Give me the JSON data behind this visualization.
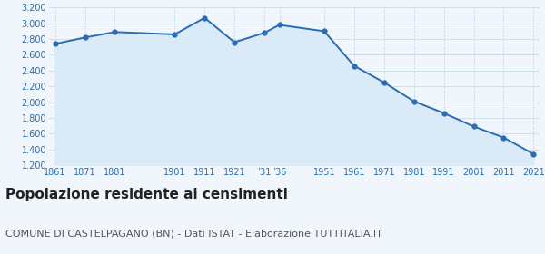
{
  "years": [
    1861,
    1871,
    1881,
    1901,
    1911,
    1921,
    1931,
    1936,
    1951,
    1961,
    1971,
    1981,
    1991,
    2001,
    2011,
    2021
  ],
  "population": [
    2740,
    2820,
    2890,
    2860,
    3070,
    2760,
    2880,
    2980,
    2900,
    2460,
    2250,
    2010,
    1860,
    1690,
    1550,
    1340
  ],
  "ylim": [
    1200,
    3200
  ],
  "yticks": [
    1200,
    1400,
    1600,
    1800,
    2000,
    2200,
    2400,
    2600,
    2800,
    3000,
    3200
  ],
  "x_tick_positions": [
    1861,
    1871,
    1881,
    1901,
    1911,
    1921,
    1931,
    1936,
    1951,
    1961,
    1971,
    1981,
    1991,
    2001,
    2011,
    2021
  ],
  "x_tick_labels": [
    "1861",
    "1871",
    "1881",
    "1901",
    "1911",
    "1921",
    "’31",
    "’36",
    "1951",
    "1961",
    "1971",
    "1981",
    "1991",
    "2001",
    "2011",
    "2021"
  ],
  "line_color": "#2a6db5",
  "fill_color": "#daeaf6",
  "marker_size": 3.5,
  "title": "Popolazione residente ai censimenti",
  "subtitle": "COMUNE DI CASTELPAGANO (BN) - Dati ISTAT - Elaborazione TUTTITALIA.IT",
  "title_fontsize": 11,
  "subtitle_fontsize": 8,
  "title_color": "#222222",
  "subtitle_color": "#555555",
  "bg_color": "#f0f6fb",
  "grid_color": "#c8dcea",
  "tick_color": "#2a6db5"
}
